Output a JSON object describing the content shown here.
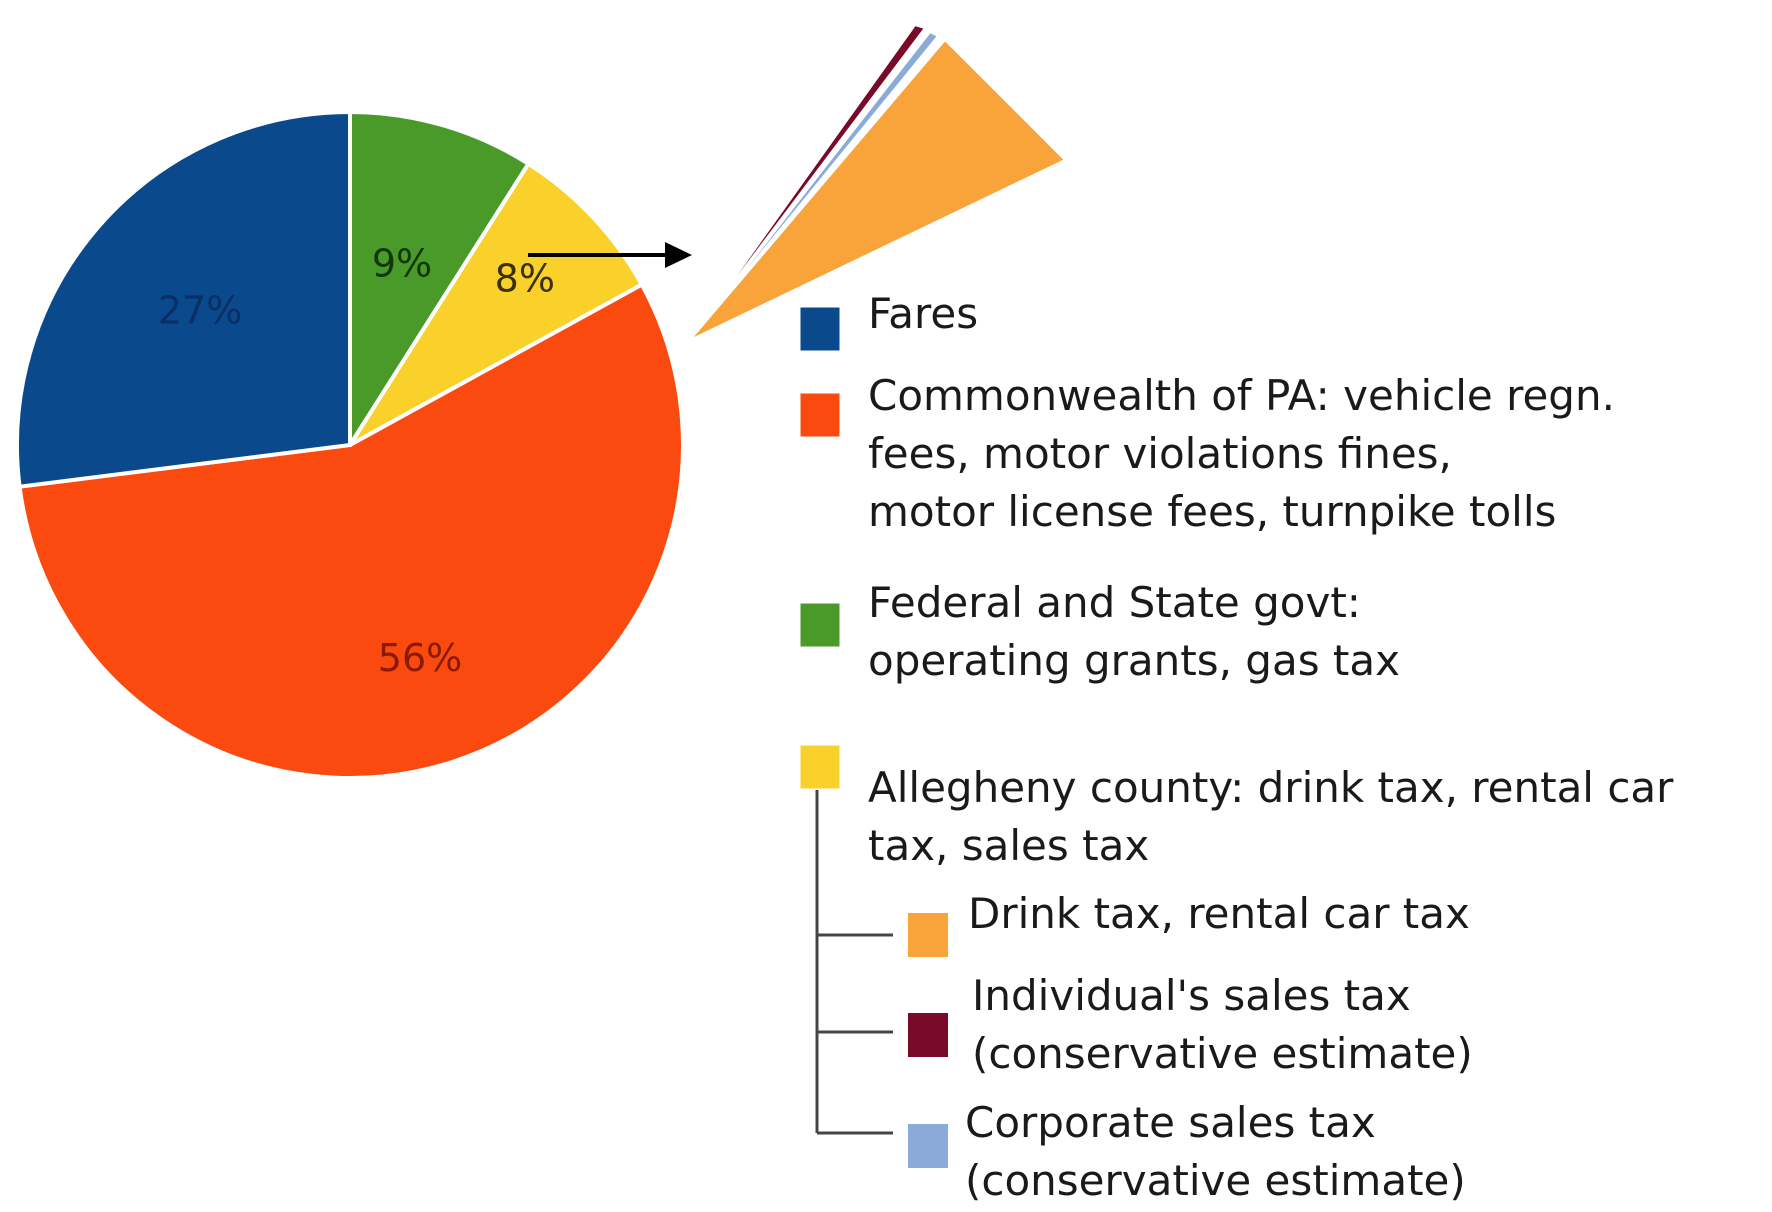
{
  "chart_data": {
    "type": "pie",
    "slices": [
      {
        "label": "Fares",
        "value": 27,
        "display": "27%",
        "color": "#0a4a8c",
        "label_color": "#0a2f66"
      },
      {
        "label": "Commonwealth of PA: vehicle regn. fees, motor violations fines, motor license fees, turnpike tolls",
        "value": 56,
        "display": "56%",
        "color": "#fa4a10",
        "label_color": "#8a1a00"
      },
      {
        "label": "Federal and State govt: operating grants, gas tax",
        "value": 9,
        "display": "9%",
        "color": "#4a9a2a",
        "label_color": "#12380a"
      },
      {
        "label": "Allegheny county: drink tax, rental car tax, sales tax",
        "value": 8,
        "display": "8%",
        "color": "#fad02a",
        "label_color": "#3a3000"
      }
    ],
    "breakdown": {
      "parent": "Allegheny county: drink tax, rental car tax, sales tax",
      "parts": [
        {
          "label": "Drink tax, rental car tax",
          "color": "#f8a43a"
        },
        {
          "label": "Individual's sales tax (conservative estimate)",
          "color": "#7a0a2a"
        },
        {
          "label": "Corporate sales tax (conservative estimate)",
          "color": "#8aaad8"
        }
      ]
    }
  },
  "legend": {
    "items": [
      {
        "lines": [
          "Fares"
        ],
        "color": "#0a4a8c"
      },
      {
        "lines": [
          "Commonwealth of PA: vehicle regn.",
          "fees, motor violations fines,",
          "motor license fees, turnpike tolls"
        ],
        "color": "#fa4a10"
      },
      {
        "lines": [
          "Federal and State govt:",
          "operating grants, gas tax"
        ],
        "color": "#4a9a2a"
      },
      {
        "lines": [
          "Allegheny county: drink tax, rental car",
          "tax, sales tax"
        ],
        "color": "#fad02a"
      }
    ],
    "sub_items": [
      {
        "lines": [
          "Drink tax, rental car tax"
        ],
        "color": "#f8a43a"
      },
      {
        "lines": [
          "Individual's sales tax",
          "(conservative estimate)"
        ],
        "color": "#7a0a2a"
      },
      {
        "lines": [
          "Corporate sales tax",
          "(conservative estimate)"
        ],
        "color": "#8aaad8"
      }
    ]
  }
}
